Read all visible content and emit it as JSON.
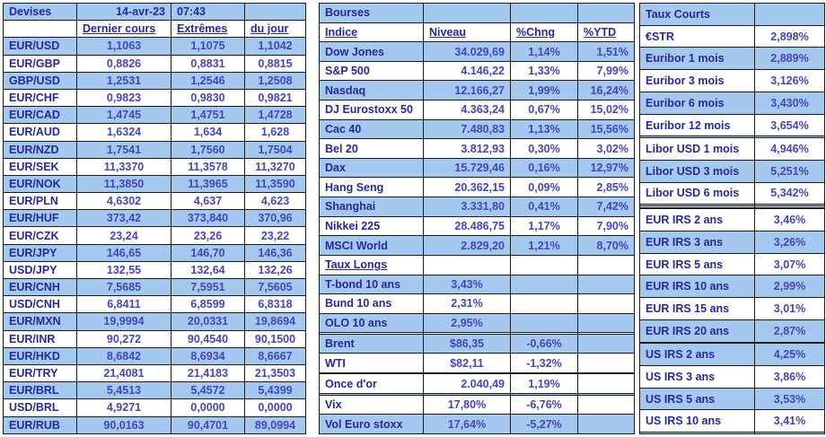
{
  "colors": {
    "row_blue": "#a5c8ee",
    "label_text": "#28289a",
    "value_text": "#4545bd",
    "border": "#1b1b1b"
  },
  "devises": {
    "title": "Devises",
    "date": "14-avr-23",
    "time": "07:43",
    "headers": [
      "Dernier cours",
      "Extrêmes",
      "du jour"
    ],
    "rows": [
      [
        "EUR/USD",
        "1,1063",
        "1,1075",
        "1,1042"
      ],
      [
        "EUR/GBP",
        "0,8826",
        "0,8831",
        "0,8815"
      ],
      [
        "GBP/USD",
        "1,2531",
        "1,2546",
        "1,2508"
      ],
      [
        "EUR/CHF",
        "0,9823",
        "0,9830",
        "0,9821"
      ],
      [
        "EUR/CAD",
        "1,4745",
        "1,4751",
        "1,4728"
      ],
      [
        "EUR/AUD",
        "1,6324",
        "1,634",
        "1,628"
      ],
      [
        "EUR/NZD",
        "1,7541",
        "1,7560",
        "1,7504"
      ],
      [
        "EUR/SEK",
        "11,3370",
        "11,3578",
        "11,3270"
      ],
      [
        "EUR/NOK",
        "11,3850",
        "11,3965",
        "11,3590"
      ],
      [
        "EUR/PLN",
        "4,6302",
        "4,637",
        "4,623"
      ],
      [
        "EUR/HUF",
        "373,42",
        "373,840",
        "370,96"
      ],
      [
        "EUR/CZK",
        "23,24",
        "23,26",
        "23,22"
      ],
      [
        "EUR/JPY",
        "146,65",
        "146,70",
        "146,36"
      ],
      [
        "USD/JPY",
        "132,55",
        "132,64",
        "132,26"
      ],
      [
        "EUR/CNH",
        "7,5685",
        "7,5951",
        "7,5605"
      ],
      [
        "USD/CNH",
        "6,8411",
        "6,8599",
        "6,8318"
      ],
      [
        "EUR/MXN",
        "19,9994",
        "20,0331",
        "19,8694"
      ],
      [
        "EUR/INR",
        "90,272",
        "90,4540",
        "90,1500"
      ],
      [
        "EUR/HKD",
        "8,6842",
        "8,6934",
        "8,6667"
      ],
      [
        "EUR/TRY",
        "21,4081",
        "21,4183",
        "21,3503"
      ],
      [
        "EUR/BRL",
        "5,4513",
        "5,4572",
        "5,4399"
      ],
      [
        "USD/BRL",
        "4,9271",
        "0,0000",
        "0,0000"
      ],
      [
        "EUR/RUB",
        "90,0163",
        "90,4701",
        "89,0994"
      ]
    ]
  },
  "bourses": {
    "title": "Bourses",
    "headers": [
      "Indice",
      "Niveau",
      "%Chng",
      "%YTD"
    ],
    "rows": [
      [
        "Dow Jones",
        "34.029,69",
        "1,14%",
        "1,51%"
      ],
      [
        "S&P 500",
        "4.146,22",
        "1,33%",
        "7,99%"
      ],
      [
        "Nasdaq",
        "12.166,27",
        "1,99%",
        "16,24%"
      ],
      [
        "DJ Eurostoxx 50",
        "4.363,24",
        "0,67%",
        "15,02%"
      ],
      [
        "Cac 40",
        "7.480,83",
        "1,13%",
        "15,56%"
      ],
      [
        "Bel 20",
        "3.812,93",
        "0,30%",
        "3,02%"
      ],
      [
        "Dax",
        "15.729,46",
        "0,16%",
        "12,97%"
      ],
      [
        "Hang Seng",
        "20.362,15",
        "0,09%",
        "2,85%"
      ],
      [
        "Shanghai",
        "3.331,80",
        "0,41%",
        "7,42%"
      ],
      [
        "Nikkei 225",
        "28.486,75",
        "1,17%",
        "7,90%"
      ],
      [
        "MSCI World",
        "2.829,20",
        "1,21%",
        "8,70%"
      ],
      {
        "c": [
          "Taux Longs",
          "",
          "",
          ""
        ],
        "h": true
      },
      [
        "T-bond 10 ans",
        "3,43%",
        "",
        ""
      ],
      [
        "Bund 10 ans",
        "2,31%",
        "",
        ""
      ],
      [
        "OLO 10 ans",
        "2,95%",
        "",
        ""
      ],
      [
        "",
        "",
        "",
        ""
      ],
      [
        "Brent",
        "$86,35",
        "-0,66%",
        ""
      ],
      [
        "WTI",
        "$82,11",
        "-1,32%",
        ""
      ],
      [
        "",
        "",
        "",
        ""
      ],
      [
        "Once d'or",
        "2.040,49",
        "1,19%",
        ""
      ],
      [
        "",
        "",
        "",
        ""
      ],
      [
        "Vix",
        "17,80%",
        "-6,76%",
        ""
      ],
      [
        "Vol Euro stoxx",
        "17,64%",
        "-5,27%",
        ""
      ]
    ]
  },
  "taux_courts": {
    "title": "Taux Courts",
    "rows": [
      [
        "€STR",
        "2,898%"
      ],
      [
        "Euribor 1 mois",
        "2,889%"
      ],
      [
        "Euribor 3 mois",
        "3,126%"
      ],
      [
        "Euribor 6 mois",
        "3,430%"
      ],
      [
        "Euribor 12 mois",
        "3,654%"
      ],
      [
        "",
        ""
      ],
      [
        "Libor USD 1 mois",
        "4,946%"
      ],
      [
        "Libor USD 3 mois",
        "5,251%"
      ],
      [
        "Libor USD 6 mois",
        "5,342%"
      ],
      [
        "",
        ""
      ],
      [
        "",
        ""
      ],
      [
        "",
        ""
      ],
      [
        "EUR IRS 2 ans",
        "3,46%"
      ],
      [
        "EUR IRS 3 ans",
        "3,26%"
      ],
      [
        "EUR IRS 5 ans",
        "3,07%"
      ],
      [
        "EUR IRS 10 ans",
        "2,99%"
      ],
      [
        "EUR IRS 15 ans",
        "3,01%"
      ],
      [
        "EUR IRS 20 ans",
        "2,87%"
      ],
      [
        "",
        ""
      ],
      [
        "US IRS 2 ans",
        "4,25%"
      ],
      [
        "US IRS 3 ans",
        "3,86%"
      ],
      [
        "US IRS 5 ans",
        "3,53%"
      ],
      [
        "US IRS 10 ans",
        "3,41%"
      ],
      [
        "",
        ""
      ]
    ]
  }
}
